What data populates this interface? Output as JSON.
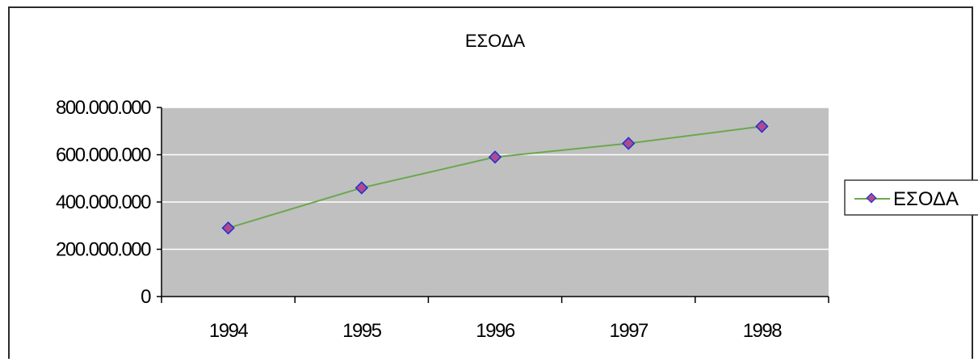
{
  "chart_data": {
    "type": "line",
    "title": "ΕΣΟΔΑ",
    "xlabel": "",
    "ylabel": "",
    "categories": [
      "1994",
      "1995",
      "1996",
      "1997",
      "1998"
    ],
    "series": [
      {
        "name": "ΕΣΟΔΑ",
        "values": [
          290000000,
          460000000,
          590000000,
          648000000,
          720000000
        ]
      }
    ],
    "ylim": [
      0,
      800000000
    ],
    "y_ticks": [
      0,
      200000000,
      400000000,
      600000000,
      800000000
    ],
    "y_tick_labels": [
      "0",
      "200.000.000",
      "400.000.000",
      "600.000.000",
      "800.000.000"
    ],
    "grid": "horizontal",
    "legend_position": "right",
    "colors": {
      "plot_background": "#c0c0c0",
      "gridline": "#ffffff",
      "line": "#6aa84f",
      "marker_fill": "#b04a90",
      "marker_edge": "#2233cc"
    }
  }
}
